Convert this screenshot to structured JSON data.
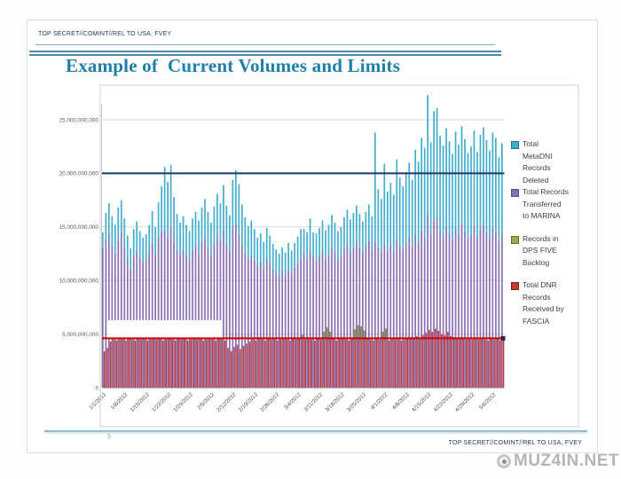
{
  "slide": {
    "classification_top": "TOP SECRET//COMINT//REL TO USA, FVEY",
    "classification_bottom": "TOP SECRET//COMINT//REL TO USA, FVEY",
    "title": "Example of  Current Volumes and Limits",
    "page_number": "5"
  },
  "watermark": {
    "text": "MUZ4IN.NET",
    "icon": "target-circle-icon",
    "color": "#b5b5b5"
  },
  "chart_data": {
    "type": "bar",
    "title": "",
    "xlabel": "",
    "ylabel": "",
    "values_unit": "billions of records",
    "x_start_date": "1/1/2012",
    "x_days": 130,
    "x_tick_labels": [
      "1/1/2012",
      "1/8/2012",
      "1/15/2012",
      "1/22/2012",
      "1/29/2012",
      "2/5/2012",
      "2/12/2012",
      "2/19/2012",
      "2/26/2012",
      "3/4/2012",
      "3/11/2012",
      "3/18/2012",
      "3/25/2012",
      "4/1/2012",
      "4/8/2012",
      "4/15/2012",
      "4/22/2012",
      "4/29/2012",
      "5/6/2012"
    ],
    "x_tick_day_indices": [
      0,
      7,
      14,
      21,
      28,
      35,
      42,
      49,
      56,
      63,
      70,
      77,
      84,
      91,
      98,
      105,
      112,
      119,
      126
    ],
    "y_tick_labels": [
      "0",
      "5,000,000,000",
      "10,000,000,000",
      "15,000,000,000",
      "20,000,000,000",
      "25,000,000,000"
    ],
    "y_tick_values_billions": [
      0,
      5,
      10,
      15,
      20,
      25
    ],
    "ylim_billions": [
      0,
      27.9
    ],
    "grid": true,
    "legend_position": "right",
    "series": [
      {
        "name": "Total MetaDNI Records Deleted",
        "legend_lines": [
          "Total",
          "MetaDNI",
          "Records",
          "Deleted"
        ],
        "color": "#41AECC",
        "border": "#1F7391",
        "stack": "marina",
        "order_in_stack": 2,
        "values": [
          1.5,
          2.4,
          2.8,
          2.8,
          2.6,
          3.0,
          3.0,
          2.7,
          2.3,
          2.0,
          2.5,
          2.7,
          2.4,
          2.3,
          2.4,
          2.6,
          3.0,
          2.6,
          3.4,
          4.2,
          5.8,
          5.1,
          5.8,
          4.2,
          3.3,
          3.0,
          3.1,
          2.9,
          2.7,
          3.0,
          3.2,
          3.0,
          3.3,
          3.6,
          3.3,
          3.0,
          3.5,
          3.9,
          3.6,
          4.2,
          3.6,
          3.3,
          4.5,
          5.1,
          4.7,
          3.9,
          3.4,
          3.1,
          3.2,
          2.9,
          2.6,
          2.7,
          2.5,
          2.9,
          2.6,
          2.4,
          2.2,
          2.1,
          2.2,
          2.1,
          2.5,
          2.1,
          2.3,
          2.5,
          2.7,
          2.3,
          2.6,
          3.0,
          2.2,
          2.6,
          2.7,
          2.9,
          2.7,
          2.8,
          3.0,
          2.8,
          2.7,
          2.7,
          3.0,
          3.2,
          3.0,
          3.2,
          3.3,
          3.2,
          3.0,
          3.2,
          3.3,
          3.1,
          10.2,
          5.5,
          5.0,
          7.5,
          5.5,
          5.8,
          5.3,
          7.4,
          6.4,
          5.9,
          6.6,
          7.0,
          6.3,
          7.9,
          7.5,
          8.6,
          8.3,
          11.1,
          8.5,
          10.2,
          10.2,
          8.9,
          8.5,
          9.2,
          8.6,
          8.0,
          9.0,
          8.5,
          9.1,
          8.6,
          8.0,
          8.2,
          8.9,
          8.0,
          8.8,
          9.1,
          8.6,
          8.2,
          8.9,
          8.7,
          7.8,
          8.4
        ]
      },
      {
        "name": "Total Records Transferred to MARINA",
        "legend_lines": [
          "Total Records",
          "Transferred",
          "to MARINA"
        ],
        "color": "#8A6FB0",
        "border": "#5D4778",
        "stack": "marina",
        "order_in_stack": 1,
        "values": [
          13.0,
          13.9,
          14.4,
          13.2,
          12.6,
          13.8,
          14.5,
          13.1,
          11.9,
          11.0,
          12.3,
          12.8,
          12.2,
          11.7,
          11.9,
          12.6,
          13.5,
          12.4,
          13.9,
          14.6,
          14.8,
          14.1,
          15.0,
          13.6,
          12.9,
          12.4,
          12.9,
          12.3,
          11.9,
          12.8,
          13.2,
          12.6,
          13.5,
          14.0,
          13.1,
          12.4,
          13.4,
          14.2,
          13.6,
          14.7,
          13.4,
          12.8,
          14.9,
          15.2,
          14.3,
          13.2,
          12.5,
          12.0,
          12.4,
          11.9,
          11.4,
          11.7,
          11.1,
          12.0,
          11.6,
          11.0,
          10.7,
          10.4,
          10.9,
          10.5,
          11.0,
          10.7,
          11.2,
          11.6,
          12.1,
          12.5,
          11.9,
          12.8,
          12.3,
          11.8,
          12.2,
          12.7,
          12.0,
          12.4,
          13.1,
          12.6,
          11.9,
          12.3,
          12.9,
          13.4,
          12.7,
          13.1,
          13.7,
          13.0,
          12.5,
          13.2,
          13.8,
          12.9,
          13.6,
          13.0,
          12.6,
          13.4,
          12.8,
          13.3,
          12.7,
          13.9,
          13.2,
          12.9,
          13.5,
          14.0,
          13.1,
          14.3,
          13.6,
          14.7,
          14.1,
          16.2,
          14.4,
          15.6,
          15.9,
          14.6,
          14.1,
          15.0,
          14.4,
          13.8,
          14.9,
          14.2,
          15.3,
          14.6,
          13.9,
          14.3,
          15.1,
          14.0,
          14.8,
          15.2,
          14.5,
          13.9,
          14.9,
          14.6,
          13.7,
          14.4
        ]
      },
      {
        "name": "Records in DPS FIVE Backlog",
        "legend_lines": [
          "Records in",
          "DPS FIVE",
          "Backlog"
        ],
        "color": "#9FA845",
        "border": "#636B2A",
        "stack": "fascia",
        "order_in_stack": 2,
        "values_sparse": {
          "64": 0.5,
          "71": 0.8,
          "72": 1.0,
          "73": 0.7,
          "81": 0.9,
          "82": 1.2,
          "83": 1.3,
          "84": 0.8,
          "90": 0.6,
          "91": 1.0
        }
      },
      {
        "name": "Total DNR Records Received by FASCIA",
        "legend_lines": [
          "Total DNR",
          "Records",
          "Received by",
          "FASCIA"
        ],
        "color": "#C53B36",
        "border": "#7E1F1B",
        "stack": "fascia",
        "order_in_stack": 1,
        "values": [
          3.4,
          3.7,
          4.3,
          4.5,
          4.4,
          4.6,
          4.5,
          4.4,
          4.6,
          4.5,
          4.4,
          4.6,
          4.5,
          4.6,
          4.4,
          4.5,
          4.6,
          4.5,
          4.6,
          4.4,
          4.5,
          4.6,
          4.5,
          4.4,
          4.6,
          4.5,
          4.6,
          4.4,
          4.5,
          4.6,
          4.5,
          4.6,
          4.4,
          4.5,
          4.6,
          4.5,
          4.4,
          4.6,
          4.5,
          4.4,
          3.7,
          3.4,
          3.8,
          4.0,
          3.6,
          3.9,
          4.1,
          4.3,
          4.5,
          4.4,
          4.6,
          4.5,
          4.4,
          4.6,
          4.5,
          4.6,
          4.4,
          4.5,
          4.6,
          4.5,
          4.4,
          4.6,
          4.5,
          4.6,
          4.4,
          4.5,
          4.6,
          4.5,
          4.4,
          4.6,
          4.5,
          4.4,
          4.6,
          4.5,
          4.6,
          4.4,
          4.5,
          4.6,
          4.5,
          4.4,
          4.6,
          4.5,
          4.6,
          4.4,
          4.5,
          4.6,
          4.5,
          4.4,
          4.6,
          4.5,
          4.6,
          4.5,
          4.4,
          4.6,
          4.5,
          4.6,
          4.4,
          4.5,
          4.6,
          4.7,
          4.6,
          4.8,
          4.7,
          4.9,
          5.1,
          5.4,
          5.2,
          5.5,
          5.3,
          5.0,
          4.9,
          5.2,
          4.8,
          4.7,
          4.6,
          4.7,
          4.6,
          4.5,
          4.6,
          4.5,
          4.6,
          4.5,
          4.6,
          4.5,
          4.4,
          4.6,
          4.5,
          4.6,
          4.4,
          4.5
        ]
      }
    ],
    "limit_lines": [
      {
        "value_billions": 20,
        "color": "#1B3A66"
      },
      {
        "value_billions": 4.6,
        "color": "#CC0000",
        "end_marker": true
      }
    ],
    "redaction_box": {
      "day_start": 2,
      "day_end": 38.5,
      "bottom_billions": 4.65,
      "top_billions": 6.3
    },
    "colors": {
      "gridline": "#d9d9d9",
      "axis": "#b9b9b9",
      "tick_text": "#595959",
      "chart_border": "#d0d0d0"
    }
  }
}
